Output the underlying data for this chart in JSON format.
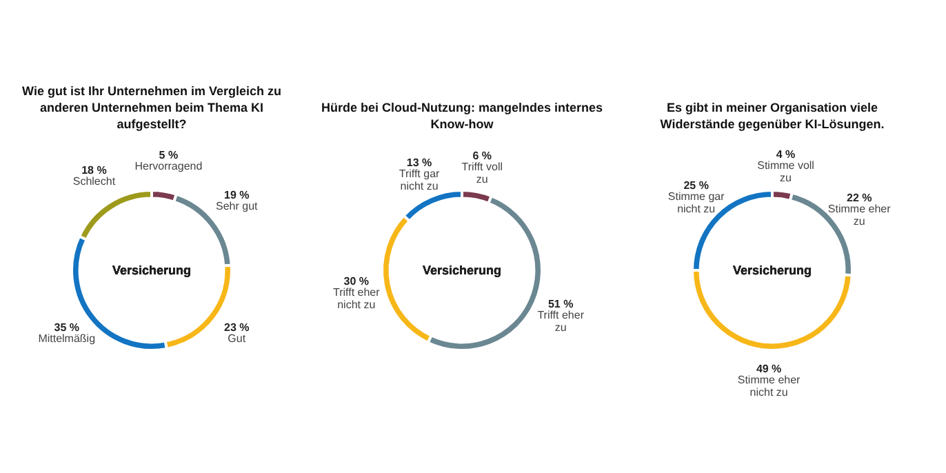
{
  "chart_data": [
    {
      "type": "donut",
      "title": "Wie gut ist Ihr Unternehmen im Vergleich zu anderen Unternehmen beim Thema KI aufgestellt?",
      "annotations": [
        "Versicherung"
      ],
      "categories": [
        "Hervorragend",
        "Sehr gut",
        "Gut",
        "Mittelmäßig",
        "Schlecht"
      ],
      "values": [
        5,
        19,
        23,
        35,
        18
      ],
      "value_labels": [
        "5 %",
        "19 %",
        "23 %",
        "35 %",
        "18 %"
      ],
      "colors": [
        "#7b3a4e",
        "#6a8792",
        "#f7b719",
        "#1274c2",
        "#9d9a1c"
      ]
    },
    {
      "type": "donut",
      "title": "Hürde bei Cloud-Nutzung: mangelndes internes Know-how",
      "annotations": [
        "Versicherung"
      ],
      "categories": [
        "Trifft voll zu",
        "Trifft eher zu",
        "Trifft eher nicht zu",
        "Trifft gar nicht zu"
      ],
      "values": [
        6,
        51,
        30,
        13
      ],
      "value_labels": [
        "6 %",
        "51 %",
        "30 %",
        "13 %"
      ],
      "colors": [
        "#7b3a4e",
        "#6a8792",
        "#f7b719",
        "#1274c2"
      ]
    },
    {
      "type": "donut",
      "title": "Es gibt in meiner Organisation viele Widerstände gegenüber KI-Lösungen.",
      "annotations": [
        "Versicherung"
      ],
      "categories": [
        "Stimme voll zu",
        "Stimme eher zu",
        "Stimme eher nicht zu",
        "Stimme gar nicht zu"
      ],
      "values": [
        4,
        22,
        49,
        25
      ],
      "value_labels": [
        "4 %",
        "22 %",
        "49 %",
        "25 %"
      ],
      "colors": [
        "#7b3a4e",
        "#6a8792",
        "#f7b719",
        "#1274c2"
      ]
    }
  ]
}
